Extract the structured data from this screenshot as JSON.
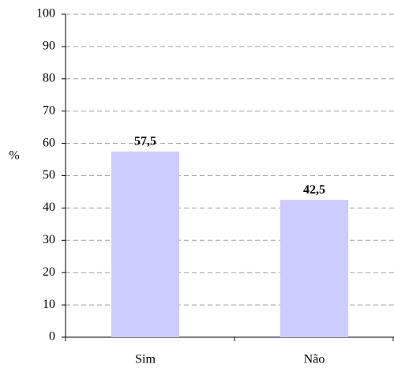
{
  "chart_data": {
    "type": "bar",
    "y_label": "%",
    "categories": [
      "Sim",
      "Não"
    ],
    "values": [
      57.5,
      42.5
    ],
    "value_labels": [
      "57,5",
      "42,5"
    ],
    "color": "#ccccff",
    "ylim": [
      0,
      100
    ],
    "yticks": [
      0,
      10,
      20,
      30,
      40,
      50,
      60,
      70,
      80,
      90,
      100
    ],
    "grid": true
  }
}
